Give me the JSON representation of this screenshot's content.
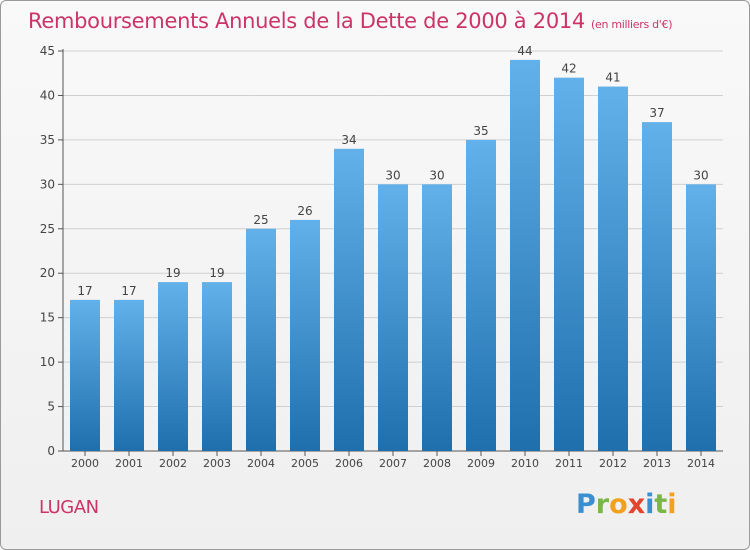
{
  "title": "Remboursements Annuels de la Dette de 2000 à 2014",
  "subtitle": "(en milliers d'€)",
  "commune": "LUGAN",
  "logo": {
    "letters": [
      "P",
      "r",
      "o",
      "x",
      "i",
      "t",
      "i"
    ],
    "colors": [
      "#3a8fd0",
      "#7ab648",
      "#f2a11e",
      "#e2452f",
      "#3a8fd0",
      "#7ab648",
      "#f2a11e"
    ]
  },
  "colors": {
    "title": "#cc3366",
    "bar_light": "#63b1ea",
    "bar_dark": "#1f6fad",
    "grid": "#cfcfcf"
  },
  "chart_data": {
    "type": "bar",
    "title": "Remboursements Annuels de la Dette de 2000 à 2014",
    "xlabel": "",
    "ylabel": "",
    "categories": [
      "2000",
      "2001",
      "2002",
      "2003",
      "2004",
      "2005",
      "2006",
      "2007",
      "2008",
      "2009",
      "2010",
      "2011",
      "2012",
      "2013",
      "2014"
    ],
    "values": [
      17,
      17,
      19,
      19,
      25,
      26,
      34,
      30,
      30,
      35,
      44,
      42,
      41,
      37,
      30
    ],
    "ylim": [
      0,
      45
    ],
    "yticks": [
      0,
      5,
      10,
      15,
      20,
      25,
      30,
      35,
      40,
      45
    ],
    "grid": true
  }
}
